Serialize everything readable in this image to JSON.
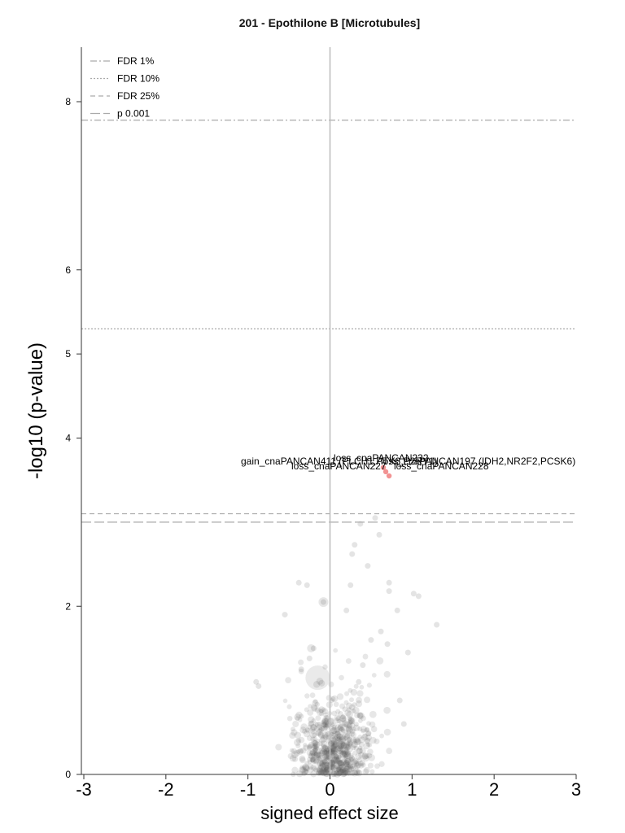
{
  "chart_data": {
    "type": "scatter",
    "title": "201 - Epothilone B [Microtubules]",
    "xlabel": "signed effect size",
    "ylabel": "-log10 (p-value)",
    "xlim": [
      -3,
      3
    ],
    "ylim": [
      0,
      8.6
    ],
    "xticks": [
      "-3",
      "-2",
      "-1",
      "0",
      "1",
      "2",
      "3"
    ],
    "yticks": [
      "0",
      "2",
      "4",
      "5",
      "6",
      "8"
    ],
    "legend": {
      "position": "top-left",
      "entries": [
        {
          "label": "FDR 1%",
          "style": "dashdot",
          "y": 7.78
        },
        {
          "label": "FDR 10%",
          "style": "dotted",
          "y": 5.3
        },
        {
          "label": "FDR 25%",
          "style": "dashed",
          "y": 3.1
        },
        {
          "label": "p 0.001",
          "style": "longdash",
          "y": 3.0
        }
      ]
    },
    "annotations": [
      {
        "text": "loss_cnaPANCAN232",
        "x": 0.48,
        "y": 3.7
      },
      {
        "text": "loss_cnaPANCAN197 (IDH2,NR2F2,PCSK6)",
        "x": 0.68,
        "y": 3.65
      },
      {
        "text": "gain_cnaPANCAN411 (PLCH1,PTX3,P2RY1)",
        "x": 0.35,
        "y": 3.65
      },
      {
        "text": "loss_cnaPANCAN227",
        "x": 0.3,
        "y": 3.58
      },
      {
        "text": "loss_cnaPANCAN228",
        "x": 0.95,
        "y": 3.58
      }
    ],
    "highlighted_points": [
      {
        "x": 0.65,
        "y": 3.65
      },
      {
        "x": 0.68,
        "y": 3.6
      },
      {
        "x": 0.72,
        "y": 3.55
      }
    ],
    "colors": {
      "highlight": "#f08080",
      "points": "#555555",
      "threshold_lines": "#aaaaaa",
      "zero_line": "#bbbbbb"
    }
  }
}
